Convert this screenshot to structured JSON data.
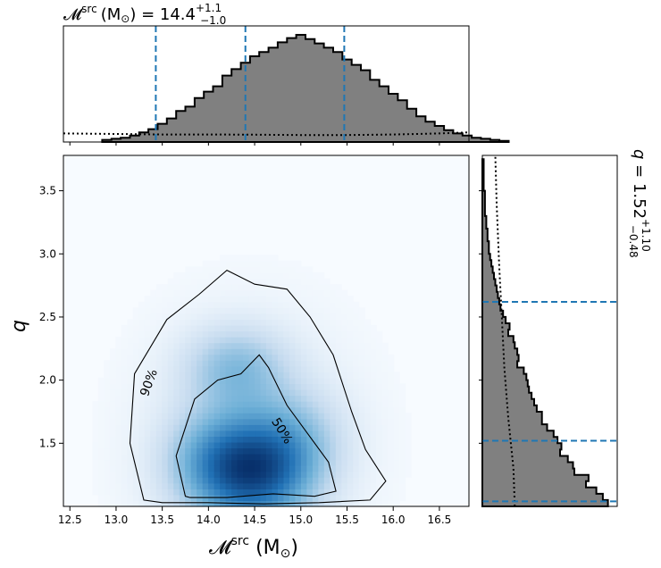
{
  "chart_data": [
    {
      "type": "histogram",
      "panel": "top-marginal",
      "title": "𝓜src (M⊙) = 14.4 +1.1 −1.0",
      "title_parts": {
        "symbol": "𝓜",
        "sup": "src",
        "unit": "(M",
        "sun": "⊙",
        "close": ")",
        "eq": " = 14.4",
        "upper": "+1.1",
        "lower": "−1.0"
      },
      "xlim": [
        12.43,
        16.82
      ],
      "bin_edges_start": 12.85,
      "bin_width": 0.1,
      "heights": [
        0.02,
        0.03,
        0.04,
        0.06,
        0.09,
        0.12,
        0.17,
        0.22,
        0.29,
        0.33,
        0.41,
        0.47,
        0.52,
        0.62,
        0.68,
        0.74,
        0.8,
        0.84,
        0.88,
        0.93,
        0.97,
        1.0,
        0.96,
        0.92,
        0.88,
        0.84,
        0.77,
        0.72,
        0.67,
        0.58,
        0.52,
        0.45,
        0.39,
        0.31,
        0.24,
        0.19,
        0.15,
        0.11,
        0.08,
        0.06,
        0.04,
        0.03,
        0.02,
        0.01
      ],
      "prior_curve": {
        "x": [
          12.43,
          13.0,
          13.5,
          14.0,
          14.5,
          15.0,
          15.5,
          16.0,
          16.5,
          16.82
        ],
        "y": [
          0.08,
          0.075,
          0.07,
          0.07,
          0.068,
          0.065,
          0.065,
          0.07,
          0.08,
          0.09
        ]
      },
      "quantile_lines": [
        13.43,
        14.4,
        15.47
      ]
    },
    {
      "type": "heatmap",
      "panel": "joint",
      "xlabel_parts": {
        "symbol": "𝓜",
        "sup": "src",
        "unit": " (M",
        "sun": "⊙",
        "close": ")"
      },
      "ylabel": "q",
      "xlim": [
        12.43,
        16.82
      ],
      "ylim": [
        1.0,
        3.78
      ],
      "xticks": [
        "12.5",
        "13.0",
        "13.5",
        "14.0",
        "14.5",
        "15.0",
        "15.5",
        "16.0",
        "16.5"
      ],
      "xtick_values": [
        12.5,
        13.0,
        13.5,
        14.0,
        14.5,
        15.0,
        15.5,
        16.0,
        16.5
      ],
      "yticks": [
        "1.5",
        "2.0",
        "2.5",
        "3.0",
        "3.5"
      ],
      "ytick_values": [
        1.5,
        2.0,
        2.5,
        3.0,
        3.5
      ],
      "density_peaks": [
        {
          "x": 14.55,
          "y": 1.25,
          "weight": 1.0
        },
        {
          "x": 14.1,
          "y": 1.35,
          "weight": 0.8
        },
        {
          "x": 14.3,
          "y": 2.1,
          "weight": 0.55
        },
        {
          "x": 14.9,
          "y": 1.5,
          "weight": 0.5
        }
      ],
      "contours": [
        {
          "label": "90%",
          "x": [
            13.3,
            13.15,
            13.2,
            13.55,
            13.9,
            14.2,
            14.5,
            14.85,
            15.1,
            15.35,
            15.55,
            15.7,
            15.92,
            15.75,
            15.2,
            14.6,
            14.0,
            13.5,
            13.3
          ],
          "y": [
            1.05,
            1.5,
            2.05,
            2.48,
            2.68,
            2.87,
            2.76,
            2.72,
            2.5,
            2.2,
            1.75,
            1.45,
            1.2,
            1.05,
            1.03,
            1.02,
            1.03,
            1.03,
            1.05
          ]
        },
        {
          "label": "50%",
          "x": [
            13.75,
            13.65,
            13.85,
            14.1,
            14.35,
            14.55,
            14.65,
            14.85,
            15.1,
            15.3,
            15.38,
            15.15,
            14.7,
            14.2,
            13.8,
            13.75
          ],
          "y": [
            1.08,
            1.4,
            1.85,
            2.0,
            2.05,
            2.2,
            2.1,
            1.8,
            1.55,
            1.35,
            1.12,
            1.08,
            1.1,
            1.07,
            1.07,
            1.08
          ]
        }
      ],
      "contour_labels": [
        {
          "text": "90%",
          "x": 13.35,
          "y": 1.98,
          "angle": -70
        },
        {
          "text": "50%",
          "x": 14.8,
          "y": 1.6,
          "angle": 58
        }
      ]
    },
    {
      "type": "histogram",
      "panel": "right-marginal",
      "orientation": "horizontal",
      "title_parts": {
        "symbol": "q",
        "eq": " = 1.52",
        "upper": "+1.10",
        "lower": "−0.48"
      },
      "ylim": [
        1.0,
        3.78
      ],
      "bin_edges_start": 1.0,
      "bin_width": 0.05,
      "heights": [
        0.97,
        0.93,
        0.88,
        0.8,
        0.82,
        0.71,
        0.7,
        0.66,
        0.6,
        0.61,
        0.58,
        0.55,
        0.5,
        0.46,
        0.46,
        0.42,
        0.4,
        0.38,
        0.36,
        0.35,
        0.34,
        0.32,
        0.27,
        0.28,
        0.27,
        0.25,
        0.24,
        0.2,
        0.21,
        0.18,
        0.16,
        0.14,
        0.13,
        0.12,
        0.11,
        0.1,
        0.09,
        0.08,
        0.07,
        0.06,
        0.05,
        0.05,
        0.04,
        0.04,
        0.03,
        0.03,
        0.02,
        0.02,
        0.02,
        0.02,
        0.01,
        0.01,
        0.01,
        0.01,
        0.01
      ],
      "prior_curve": {
        "x": [
          0.25,
          0.24,
          0.2,
          0.17,
          0.15,
          0.13,
          0.11,
          0.1
        ],
        "y": [
          1.0,
          1.3,
          1.7,
          2.1,
          2.5,
          2.9,
          3.4,
          3.78
        ]
      },
      "quantile_lines": [
        1.04,
        1.52,
        2.62
      ]
    }
  ],
  "colors": {
    "hist_fill": "#808080",
    "hist_edge": "#000000",
    "quantile": "#1f77b4",
    "heatmap_low": "#f7fbff",
    "heatmap_high": "#08306b"
  }
}
